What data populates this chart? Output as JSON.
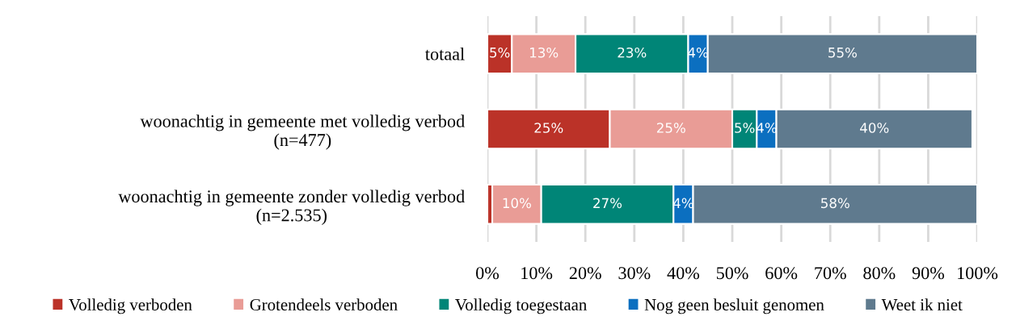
{
  "chart_data": {
    "type": "bar",
    "orientation": "horizontal",
    "stacked": true,
    "categories": [
      "totaal",
      "woonachtig in gemeente met volledig verbod\n(n=477)",
      "woonachtig in gemeente zonder volledig verbod\n(n=2.535)"
    ],
    "series": [
      {
        "name": "Volledig verboden",
        "color": "#bb3228",
        "values": [
          5,
          25,
          1
        ],
        "value_labels": [
          "5%",
          "25%",
          null
        ]
      },
      {
        "name": "Grotendeels verboden",
        "color": "#e99c96",
        "values": [
          13,
          25,
          10
        ],
        "value_labels": [
          "13%",
          "25%",
          "10%"
        ]
      },
      {
        "name": "Volledig toegestaan",
        "color": "#008577",
        "values": [
          23,
          5,
          27
        ],
        "value_labels": [
          "23%",
          "5%",
          "27%"
        ]
      },
      {
        "name": "Nog geen besluit genomen",
        "color": "#0b6fc0",
        "values": [
          4,
          4,
          4
        ],
        "value_labels": [
          "4%",
          "4%",
          "4%"
        ]
      },
      {
        "name": "Weet ik niet",
        "color": "#5f7a8e",
        "values": [
          55,
          40,
          58
        ],
        "value_labels": [
          "55%",
          "40%",
          "58%"
        ]
      }
    ],
    "xlim": [
      0,
      100
    ],
    "xticks": [
      {
        "value": 0,
        "label": "0%"
      },
      {
        "value": 10,
        "label": "10%"
      },
      {
        "value": 20,
        "label": "20%"
      },
      {
        "value": 30,
        "label": "30%"
      },
      {
        "value": 40,
        "label": "40%"
      },
      {
        "value": 50,
        "label": "50%"
      },
      {
        "value": 60,
        "label": "60%"
      },
      {
        "value": 70,
        "label": "70%"
      },
      {
        "value": 80,
        "label": "80%"
      },
      {
        "value": 90,
        "label": "90%"
      },
      {
        "value": 100,
        "label": "100%"
      }
    ],
    "grid": "x",
    "legend": "bottom"
  }
}
